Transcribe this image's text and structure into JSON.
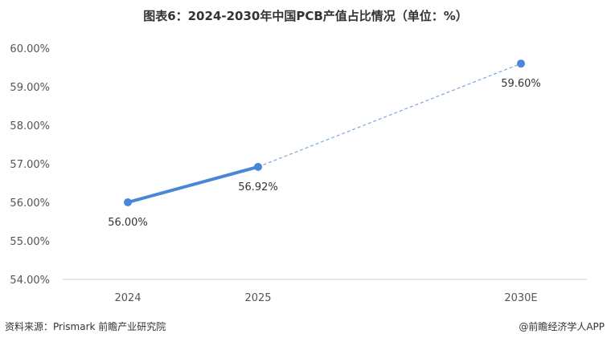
{
  "chart_data": {
    "type": "line",
    "title": "图表6：2024-2030年中国PCB产值占比情况（单位：%）",
    "categories": [
      "2024",
      "2025",
      "2030E"
    ],
    "values": [
      56.0,
      56.92,
      59.6
    ],
    "data_labels": [
      "56.00%",
      "56.92%",
      "59.60%"
    ],
    "solid_segment": [
      "2024",
      "2025"
    ],
    "dashed_segment": [
      "2025",
      "2030E"
    ],
    "ylim": [
      54.0,
      60.0
    ],
    "yticks": [
      "54.00%",
      "55.00%",
      "56.00%",
      "57.00%",
      "58.00%",
      "59.00%",
      "60.00%"
    ],
    "grid": false,
    "line_color": "#4a86d8",
    "dash_color": "#7ba6d9"
  },
  "footer": {
    "source": "资料来源：Prismark  前瞻产业研究院",
    "brand": "@前瞻经济学人APP"
  }
}
